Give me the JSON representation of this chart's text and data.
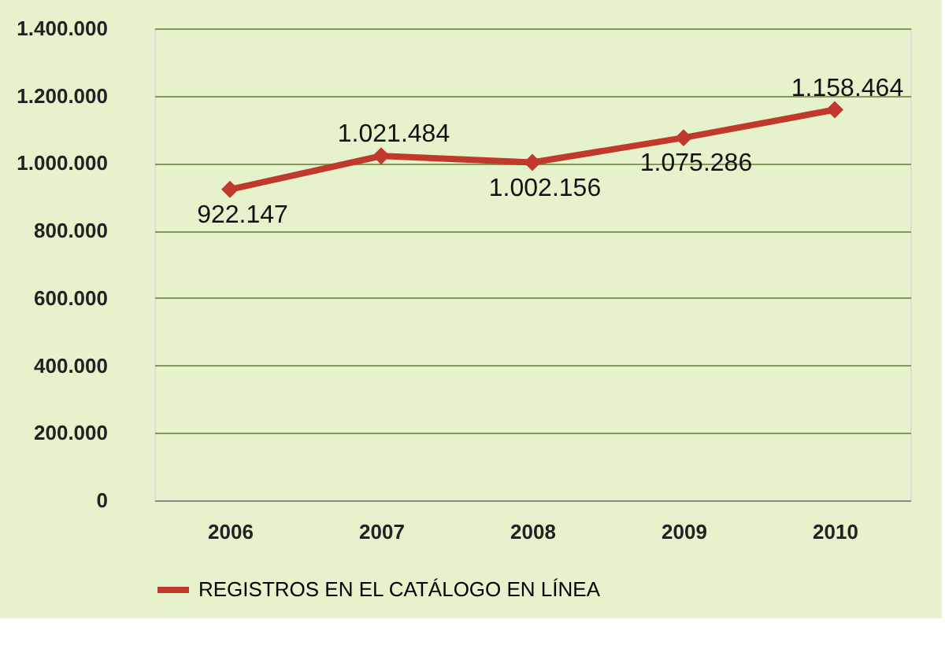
{
  "chart_data": {
    "type": "line",
    "categories": [
      "2006",
      "2007",
      "2008",
      "2009",
      "2010"
    ],
    "series": [
      {
        "name": "REGISTROS EN EL CATÁLOGO EN LÍNEA",
        "color": "#c0392b",
        "values": [
          922147,
          1021484,
          1002156,
          1075286,
          1158464
        ],
        "value_labels": [
          "922.147",
          "1.021.484",
          "1.002.156",
          "1.075.286",
          "1.158.464"
        ]
      }
    ],
    "ylim": [
      0,
      1400000
    ],
    "yticks": [
      {
        "value": 0,
        "label": "0"
      },
      {
        "value": 200000,
        "label": "200.000"
      },
      {
        "value": 400000,
        "label": "400.000"
      },
      {
        "value": 600000,
        "label": "600.000"
      },
      {
        "value": 800000,
        "label": "800.000"
      },
      {
        "value": 1000000,
        "label": "1.000.000"
      },
      {
        "value": 1200000,
        "label": "1.200.000"
      },
      {
        "value": 1400000,
        "label": "1.400.000"
      }
    ],
    "grid": "y",
    "legend": "bottom",
    "marker": "diamond",
    "line_style": "solid"
  }
}
